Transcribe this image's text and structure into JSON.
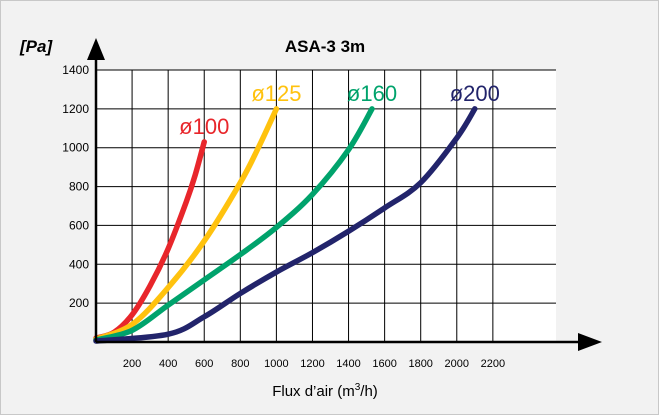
{
  "chart_data": {
    "type": "line",
    "title": "ASA-3 3m",
    "ylabel": "[Pa]",
    "xlabel_main": "Flux d’air (m",
    "xlabel_sup": "3",
    "xlabel_end": "/h)",
    "xlim": [
      0,
      2550
    ],
    "ylim": [
      0,
      1400
    ],
    "x_ticks": [
      200,
      400,
      600,
      800,
      1000,
      1200,
      1400,
      1600,
      1800,
      2000,
      2200
    ],
    "y_ticks": [
      200,
      400,
      600,
      800,
      1000,
      1200,
      1400
    ],
    "grid": true,
    "series": [
      {
        "name": "ø100",
        "color": "#e8262b",
        "points": [
          [
            0,
            20
          ],
          [
            100,
            50
          ],
          [
            200,
            140
          ],
          [
            300,
            290
          ],
          [
            400,
            480
          ],
          [
            500,
            720
          ],
          [
            550,
            860
          ],
          [
            600,
            1030
          ]
        ]
      },
      {
        "name": "ø125",
        "color": "#ffc20e",
        "points": [
          [
            0,
            15
          ],
          [
            200,
            90
          ],
          [
            400,
            280
          ],
          [
            600,
            520
          ],
          [
            800,
            820
          ],
          [
            900,
            1000
          ],
          [
            1000,
            1200
          ]
        ]
      },
      {
        "name": "ø160",
        "color": "#00a36c",
        "points": [
          [
            0,
            10
          ],
          [
            200,
            60
          ],
          [
            400,
            190
          ],
          [
            600,
            320
          ],
          [
            800,
            450
          ],
          [
            1000,
            590
          ],
          [
            1200,
            760
          ],
          [
            1400,
            990
          ],
          [
            1530,
            1200
          ]
        ]
      },
      {
        "name": "ø200",
        "color": "#22246b",
        "points": [
          [
            0,
            5
          ],
          [
            400,
            40
          ],
          [
            600,
            130
          ],
          [
            800,
            250
          ],
          [
            1000,
            360
          ],
          [
            1200,
            460
          ],
          [
            1400,
            570
          ],
          [
            1600,
            690
          ],
          [
            1800,
            820
          ],
          [
            2000,
            1050
          ],
          [
            2100,
            1200
          ]
        ]
      }
    ]
  }
}
